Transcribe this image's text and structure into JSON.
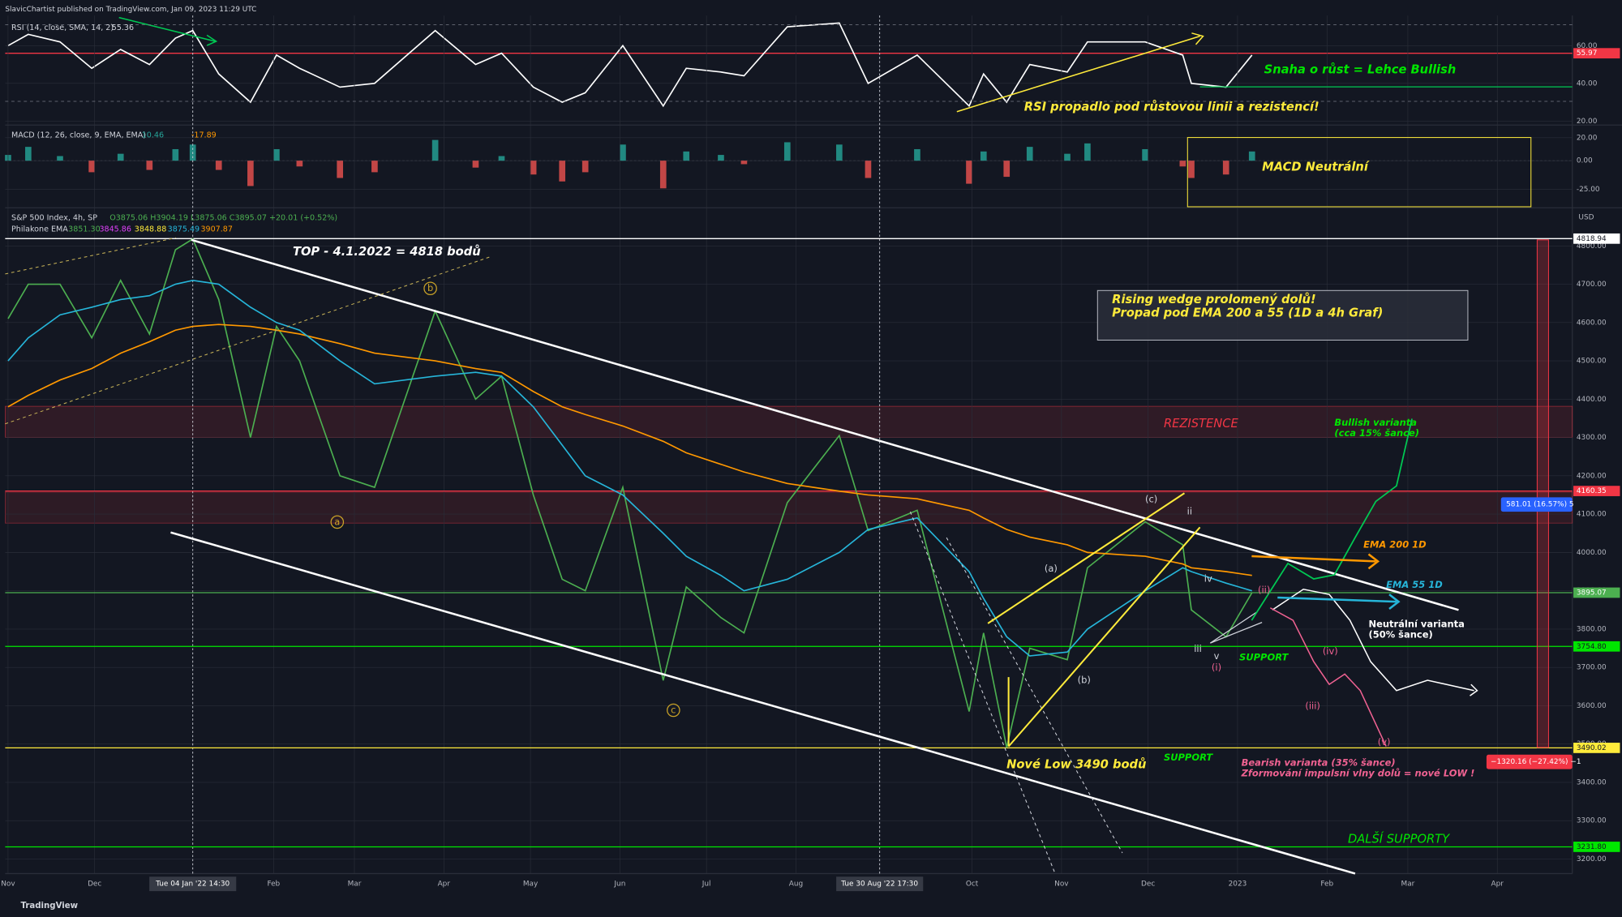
{
  "header": "SlavicChartist published on TradingView.com, Jan 09, 2023 11:29 UTC",
  "footer": "TradingView",
  "legend": {
    "rsi_value": "55.36",
    "macd_values": [
      "10.46",
      "-17.89"
    ],
    "ohlc": "O3875.06 H3904.19 L3875.06 C3895.07 +20.01 (+0.52%)",
    "ema_name": "Philakone EMA",
    "ema_values": [
      "3851.30",
      "3845.86",
      "3848.88",
      "3875.49",
      "3907.87"
    ],
    "currency": "USD"
  },
  "annotations": {
    "top": "TOP - 4.1.2022 = 4818 bodů",
    "wedge_1": "Rising wedge prolomený dolů!",
    "wedge_2": "Propad pod EMA 200 a 55 (1D a 4h Graf)",
    "resistance": "REZISTENCE",
    "bullish_1": "Bullish varianta",
    "bullish_2": "(cca 15% šance)",
    "neutral_1": "Neutrální varianta",
    "neutral_2": "(50% šance)",
    "support_1": "SUPPORT",
    "support_2": "SUPPORT",
    "new_low": "Nové Low 3490 bodů",
    "bearish_1": "Bearish varianta (35% šance)",
    "bearish_2": "Zformování impulsní vlny dolů = nové LOW !",
    "more_support": "DALŠÍ SUPPORTY",
    "rsi_note_1": "Snaha o růst = Lehce Bullish",
    "rsi_note_2": "RSI propadlo pod růstovou linii a rezistencí!",
    "macd_note": "MACD Neutrální",
    "measure_up": "581.01 (16.57%) 5",
    "measure_down": "−1320.16 (−27.42%) −1"
  },
  "waves": [
    "a",
    "b",
    "c",
    "(a)",
    "(b)",
    "(c)",
    "ii",
    "iii",
    "iv",
    "v",
    "(i)",
    "(ii)",
    "(iii)",
    "(iv)",
    "(v)"
  ],
  "chart_data": [
    {
      "type": "line",
      "x": [
        "2021-11-01",
        "2021-11-08",
        "2021-11-19",
        "2021-11-30",
        "2021-12-10",
        "2021-12-20",
        "2021-12-29",
        "2022-01-04",
        "2022-01-13",
        "2022-01-24",
        "2022-02-02",
        "2022-02-10",
        "2022-02-24",
        "2022-03-08",
        "2022-03-29",
        "2022-04-12",
        "2022-04-21",
        "2022-05-02",
        "2022-05-12",
        "2022-05-20",
        "2022-06-02",
        "2022-06-16",
        "2022-06-24",
        "2022-07-06",
        "2022-07-14",
        "2022-07-29",
        "2022-08-16",
        "2022-08-26",
        "2022-09-12",
        "2022-09-30",
        "2022-10-05",
        "2022-10-13",
        "2022-10-21",
        "2022-11-03",
        "2022-11-10",
        "2022-11-30",
        "2022-12-13",
        "2022-12-16",
        "2022-12-28",
        "2023-01-06"
      ],
      "xlim": [
        "2021-10-31",
        "2023-04-27"
      ],
      "ylim": [
        18.4,
        76
      ],
      "yticks": [
        {
          "value": 20,
          "label": "20.00"
        },
        {
          "value": 40,
          "label": "40.00"
        },
        {
          "value": 60,
          "label": "60.00"
        }
      ],
      "levels": [
        {
          "value": 55.97,
          "color": "#f23645"
        }
      ],
      "series": [
        {
          "name": "RSI (14, close, SMA, 14, 2)",
          "color": "#ffffff",
          "values": [
            60,
            66,
            62,
            48,
            58,
            50,
            64,
            68,
            45,
            30,
            55,
            48,
            38,
            40,
            68,
            50,
            56,
            38,
            30,
            35,
            60,
            28,
            48,
            46,
            44,
            70,
            72,
            40,
            55,
            28,
            45,
            30,
            50,
            46,
            62,
            62,
            55,
            40,
            38,
            55
          ]
        }
      ]
    },
    {
      "type": "bar",
      "x": [
        "2021-11-01",
        "2021-11-08",
        "2021-11-19",
        "2021-11-30",
        "2021-12-10",
        "2021-12-20",
        "2021-12-29",
        "2022-01-04",
        "2022-01-13",
        "2022-01-24",
        "2022-02-02",
        "2022-02-10",
        "2022-02-24",
        "2022-03-08",
        "2022-03-29",
        "2022-04-12",
        "2022-04-21",
        "2022-05-02",
        "2022-05-12",
        "2022-05-20",
        "2022-06-02",
        "2022-06-16",
        "2022-06-24",
        "2022-07-06",
        "2022-07-14",
        "2022-07-29",
        "2022-08-16",
        "2022-08-26",
        "2022-09-12",
        "2022-09-30",
        "2022-10-05",
        "2022-10-13",
        "2022-10-21",
        "2022-11-03",
        "2022-11-10",
        "2022-11-30",
        "2022-12-13",
        "2022-12-16",
        "2022-12-28",
        "2023-01-06"
      ],
      "xlim": [
        "2021-10-31",
        "2023-04-27"
      ],
      "ylim": [
        -40,
        30
      ],
      "yticks": [
        {
          "value": -25,
          "label": "-25.00"
        },
        {
          "value": 0,
          "label": "0.00"
        },
        {
          "value": 20,
          "label": "20.00"
        }
      ],
      "series": [
        {
          "name": "MACD (12, 26, close, 9, EMA, EMA)",
          "color": "#26a69a",
          "negative_color": "#ef5350",
          "values": [
            5,
            12,
            4,
            -10,
            6,
            -8,
            10,
            14,
            -8,
            -22,
            10,
            -5,
            -15,
            -10,
            18,
            -6,
            4,
            -12,
            -18,
            -10,
            14,
            -24,
            8,
            5,
            -3,
            16,
            14,
            -15,
            10,
            -20,
            8,
            -14,
            12,
            6,
            15,
            10,
            -5,
            -15,
            -12,
            8
          ]
        }
      ]
    },
    {
      "type": "line",
      "x": [
        "2021-11-01",
        "2021-11-08",
        "2021-11-19",
        "2021-11-30",
        "2021-12-10",
        "2021-12-20",
        "2021-12-29",
        "2022-01-04",
        "2022-01-13",
        "2022-01-24",
        "2022-02-02",
        "2022-02-10",
        "2022-02-24",
        "2022-03-08",
        "2022-03-29",
        "2022-04-12",
        "2022-04-21",
        "2022-05-02",
        "2022-05-12",
        "2022-05-20",
        "2022-06-02",
        "2022-06-16",
        "2022-06-24",
        "2022-07-06",
        "2022-07-14",
        "2022-07-29",
        "2022-08-16",
        "2022-08-26",
        "2022-09-12",
        "2022-09-30",
        "2022-10-05",
        "2022-10-13",
        "2022-10-21",
        "2022-11-03",
        "2022-11-10",
        "2022-11-30",
        "2022-12-13",
        "2022-12-16",
        "2022-12-28",
        "2023-01-06"
      ],
      "xlim": [
        "2021-10-31",
        "2023-04-27"
      ],
      "ylim": [
        3162,
        4894
      ],
      "grid": true,
      "xticks": [
        {
          "value": "2021-11-01",
          "label": "Nov"
        },
        {
          "value": "2021-12-01",
          "label": "Dec"
        },
        {
          "value": "2022-01-04",
          "label": "Tue 04 Jan '22   14:30",
          "highlight": true
        },
        {
          "value": "2022-02-01",
          "label": "Feb"
        },
        {
          "value": "2022-03-01",
          "label": "Mar"
        },
        {
          "value": "2022-04-01",
          "label": "Apr"
        },
        {
          "value": "2022-05-01",
          "label": "May"
        },
        {
          "value": "2022-06-01",
          "label": "Jun"
        },
        {
          "value": "2022-07-01",
          "label": "Jul"
        },
        {
          "value": "2022-08-01",
          "label": "Aug"
        },
        {
          "value": "2022-08-30",
          "label": "Tue 30 Aug '22   17:30",
          "highlight": true
        },
        {
          "value": "2022-10-01",
          "label": "Oct"
        },
        {
          "value": "2022-11-01",
          "label": "Nov"
        },
        {
          "value": "2022-12-01",
          "label": "Dec"
        },
        {
          "value": "2023-01-01",
          "label": "2023"
        },
        {
          "value": "2023-02-01",
          "label": "Feb"
        },
        {
          "value": "2023-03-01",
          "label": "Mar"
        },
        {
          "value": "2023-04-01",
          "label": "Apr"
        }
      ],
      "yticks": [
        {
          "value": 3200,
          "label": "3200.00"
        },
        {
          "value": 3300,
          "label": "3300.00"
        },
        {
          "value": 3400,
          "label": "3400.00"
        },
        {
          "value": 3500,
          "label": "3500.00"
        },
        {
          "value": 3600,
          "label": "3600.00"
        },
        {
          "value": 3700,
          "label": "3700.00"
        },
        {
          "value": 3800,
          "label": "3800.00"
        },
        {
          "value": 3900,
          "label": "3900.00"
        },
        {
          "value": 4000,
          "label": "4000.00"
        },
        {
          "value": 4100,
          "label": "4100.00"
        },
        {
          "value": 4200,
          "label": "4200.00"
        },
        {
          "value": 4300,
          "label": "4300.00"
        },
        {
          "value": 4400,
          "label": "4400.00"
        },
        {
          "value": 4500,
          "label": "4500.00"
        },
        {
          "value": 4600,
          "label": "4600.00"
        },
        {
          "value": 4700,
          "label": "4700.00"
        },
        {
          "value": 4800,
          "label": "4800.00"
        }
      ],
      "levels": [
        {
          "value": 4818.94,
          "color": "#ffffff"
        },
        {
          "value": 4160.35,
          "color": "#f23645"
        },
        {
          "value": 3895.07,
          "color": "#4caf50"
        },
        {
          "value": 3754.8,
          "label": "3754.80",
          "color": "#00e600"
        },
        {
          "value": 3490.02,
          "color": "#ffeb3b"
        },
        {
          "value": 3231.8,
          "label": "3231.80",
          "color": "#00e600"
        }
      ],
      "series": [
        {
          "name": "S&P 500 Index, 4h, SP",
          "color": "#4caf50",
          "values": [
            4610,
            4700,
            4700,
            4560,
            4710,
            4570,
            4790,
            4818,
            4660,
            4300,
            4590,
            4500,
            4200,
            4170,
            4630,
            4400,
            4460,
            4150,
            3930,
            3900,
            4170,
            3666,
            3910,
            3830,
            3790,
            4130,
            4305,
            4057,
            4110,
            3585,
            3790,
            3491,
            3750,
            3720,
            3960,
            4080,
            4020,
            3850,
            3780,
            3895
          ]
        },
        {
          "name": "EMA 200 1D",
          "color": "#ff9800",
          "values": [
            4380,
            4410,
            4450,
            4480,
            4520,
            4550,
            4580,
            4590,
            4595,
            4590,
            4580,
            4570,
            4545,
            4520,
            4500,
            4480,
            4470,
            4420,
            4380,
            4360,
            4330,
            4290,
            4260,
            4230,
            4210,
            4180,
            4160,
            4150,
            4140,
            4110,
            4090,
            4060,
            4040,
            4020,
            4000,
            3990,
            3970,
            3960,
            3950,
            3940
          ]
        },
        {
          "name": "EMA 55 1D",
          "color": "#26b5d9",
          "values": [
            4500,
            4560,
            4620,
            4640,
            4660,
            4670,
            4700,
            4710,
            4700,
            4640,
            4600,
            4580,
            4500,
            4440,
            4460,
            4470,
            4460,
            4380,
            4280,
            4200,
            4150,
            4050,
            3990,
            3940,
            3900,
            3930,
            4000,
            4060,
            4090,
            3950,
            3880,
            3780,
            3730,
            3740,
            3800,
            3900,
            3960,
            3950,
            3920,
            3900
          ]
        }
      ]
    }
  ]
}
